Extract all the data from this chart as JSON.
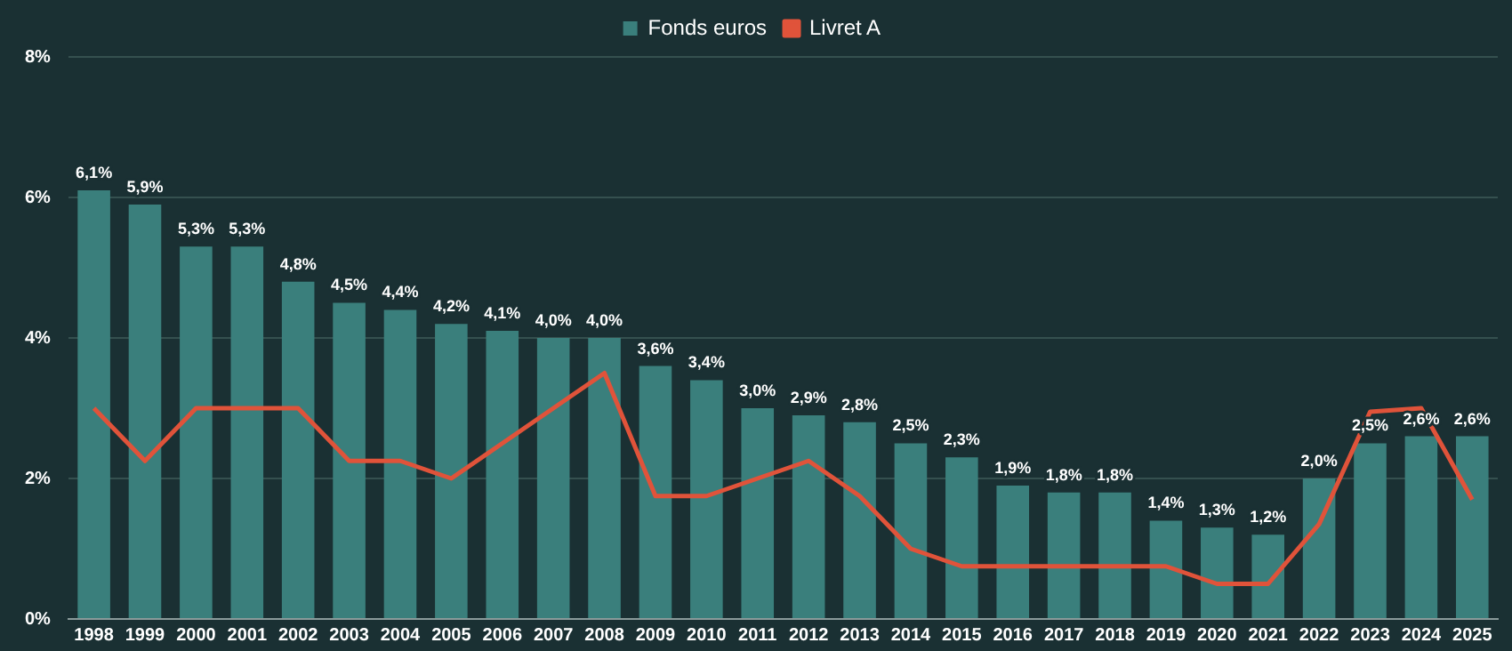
{
  "chart_data": {
    "type": "bar",
    "categories": [
      "1998",
      "1999",
      "2000",
      "2001",
      "2002",
      "2003",
      "2004",
      "2005",
      "2006",
      "2007",
      "2008",
      "2009",
      "2010",
      "2011",
      "2012",
      "2013",
      "2014",
      "2015",
      "2016",
      "2017",
      "2018",
      "2019",
      "2020",
      "2021",
      "2022",
      "2023",
      "2024",
      "2025"
    ],
    "series": [
      {
        "name": "Fonds euros",
        "color": "#3a7f7c",
        "values": [
          6.1,
          5.9,
          5.3,
          5.3,
          4.8,
          4.5,
          4.4,
          4.2,
          4.1,
          4.0,
          4.0,
          3.6,
          3.4,
          3.0,
          2.9,
          2.8,
          2.5,
          2.3,
          1.9,
          1.8,
          1.8,
          1.4,
          1.3,
          1.2,
          2.0,
          2.5,
          2.6,
          2.6
        ],
        "value_labels": [
          "6,1%",
          "5,9%",
          "5,3%",
          "5,3%",
          "4,8%",
          "4,5%",
          "4,4%",
          "4,2%",
          "4,1%",
          "4,0%",
          "4,0%",
          "3,6%",
          "3,4%",
          "3,0%",
          "2,9%",
          "2,8%",
          "2,5%",
          "2,3%",
          "1,9%",
          "1,8%",
          "1,8%",
          "1,4%",
          "1,3%",
          "1,2%",
          "2,0%",
          "2,5%",
          "2,6%",
          "2,6%"
        ]
      },
      {
        "name": "Livret A",
        "type": "line",
        "color": "#e0533a",
        "values": [
          3.0,
          2.25,
          3.0,
          3.0,
          3.0,
          2.25,
          2.25,
          2.0,
          2.5,
          3.0,
          3.5,
          1.75,
          1.75,
          2.0,
          2.25,
          1.75,
          1.0,
          0.75,
          0.75,
          0.75,
          0.75,
          0.75,
          0.5,
          0.5,
          1.35,
          2.95,
          3.0,
          1.7
        ]
      }
    ],
    "ylim": [
      0,
      8
    ],
    "yticks": [
      {
        "value": 0,
        "label": "0%"
      },
      {
        "value": 2,
        "label": "2%"
      },
      {
        "value": 4,
        "label": "4%"
      },
      {
        "value": 6,
        "label": "6%"
      },
      {
        "value": 8,
        "label": "8%"
      }
    ],
    "grid": "y",
    "legend": "top",
    "marker": "none"
  }
}
